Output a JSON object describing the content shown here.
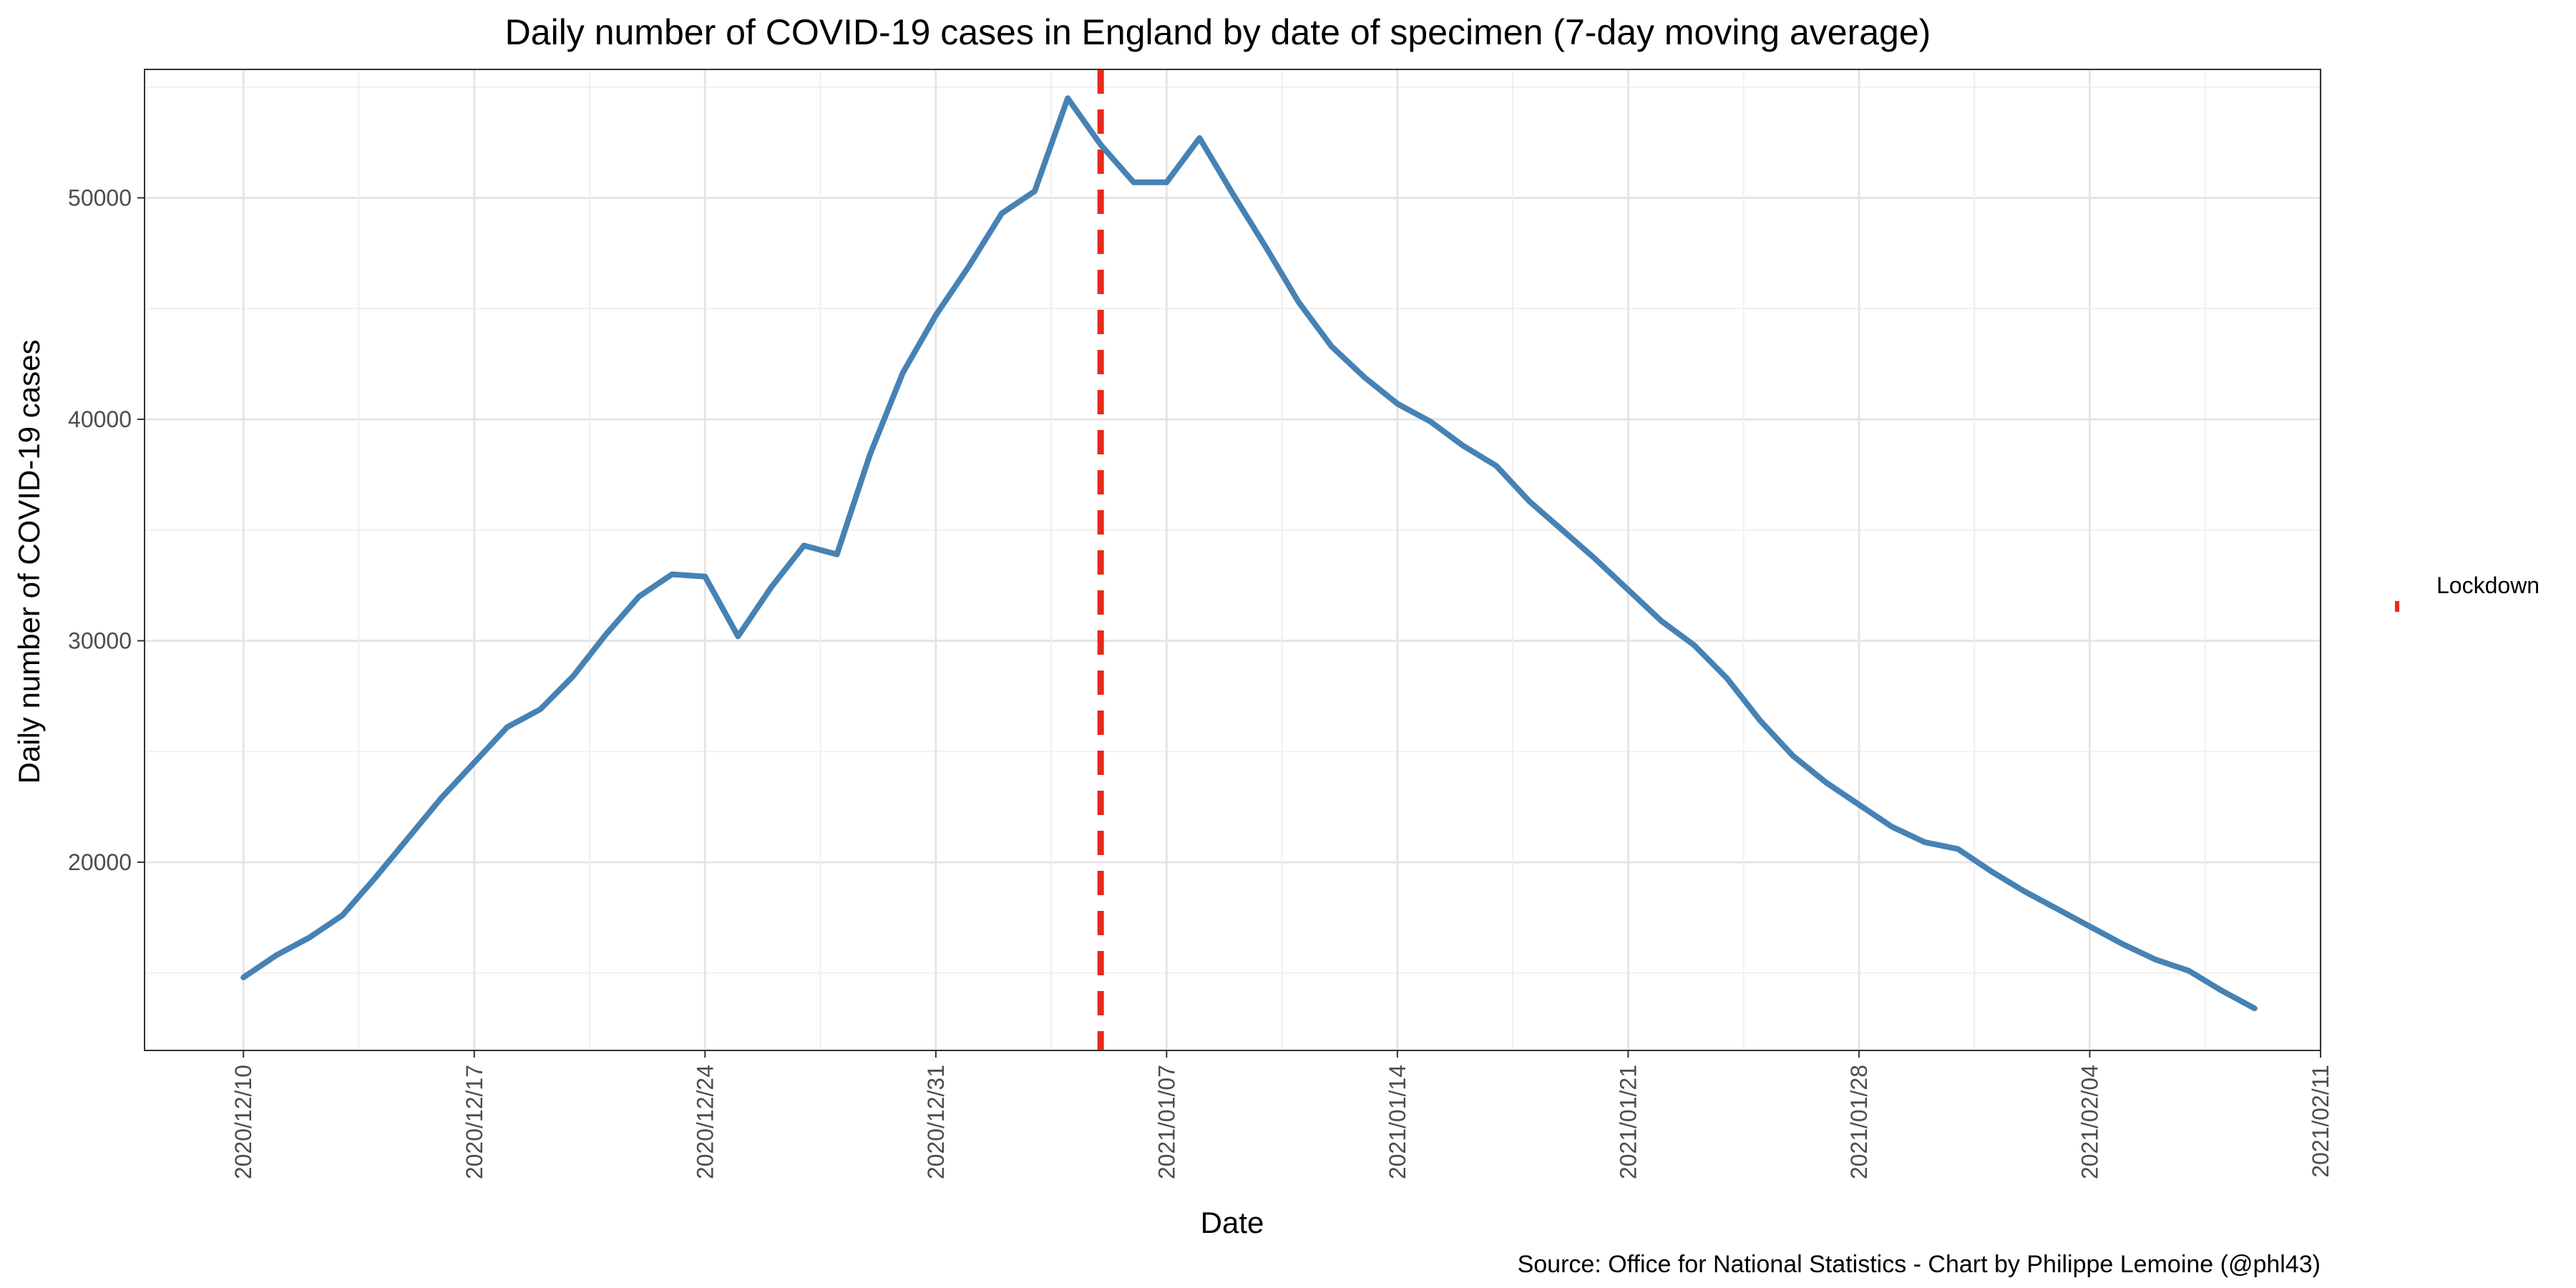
{
  "chart_data": {
    "type": "line",
    "title": "Daily number of COVID-19 cases in England by date of specimen (7-day moving average)",
    "xlabel": "Date",
    "ylabel": "Daily number of COVID-19 cases",
    "caption": "Source: Office for National Statistics - Chart by Philippe Lemoine (@phl43)",
    "x_type": "date",
    "xlim": [
      "2020-12-07",
      "2021-02-11"
    ],
    "ylim": [
      11500,
      55800
    ],
    "grid": true,
    "x_ticks": [
      {
        "date": "2020-12-10",
        "label": "2020/12/10"
      },
      {
        "date": "2020-12-17",
        "label": "2020/12/17"
      },
      {
        "date": "2020-12-24",
        "label": "2020/12/24"
      },
      {
        "date": "2020-12-31",
        "label": "2020/12/31"
      },
      {
        "date": "2021-01-07",
        "label": "2021/01/07"
      },
      {
        "date": "2021-01-14",
        "label": "2021/01/14"
      },
      {
        "date": "2021-01-21",
        "label": "2021/01/21"
      },
      {
        "date": "2021-01-28",
        "label": "2021/01/28"
      },
      {
        "date": "2021-02-04",
        "label": "2021/02/04"
      },
      {
        "date": "2021-02-11",
        "label": "2021/02/11"
      }
    ],
    "y_ticks": [
      {
        "value": 20000,
        "label": "20000"
      },
      {
        "value": 30000,
        "label": "30000"
      },
      {
        "value": 40000,
        "label": "40000"
      },
      {
        "value": 50000,
        "label": "50000"
      }
    ],
    "series": [
      {
        "color": "#4682b4",
        "start_date": "2020-12-10",
        "values": [
          14800,
          15800,
          16600,
          17600,
          19300,
          21100,
          22900,
          24500,
          26100,
          26900,
          28400,
          30300,
          32000,
          33000,
          32900,
          30200,
          32400,
          34300,
          33900,
          38400,
          42100,
          44700,
          46900,
          49300,
          50300,
          54500,
          52400,
          50700,
          50700,
          52700,
          50200,
          47800,
          45300,
          43300,
          41900,
          40700,
          39900,
          38800,
          37900,
          36300,
          35000,
          33700,
          32300,
          30900,
          29800,
          28300,
          26400,
          24800,
          23600,
          22600,
          21600,
          20900,
          20600,
          19600,
          18700,
          17900,
          17100,
          16300,
          15600,
          15100,
          14200,
          13400
        ]
      }
    ],
    "vline": {
      "date": "2021-01-05",
      "color": "#e8291b",
      "style": "dashed"
    },
    "legend": {
      "label": "Lockdown",
      "position": "right",
      "color": "#e8291b"
    }
  }
}
